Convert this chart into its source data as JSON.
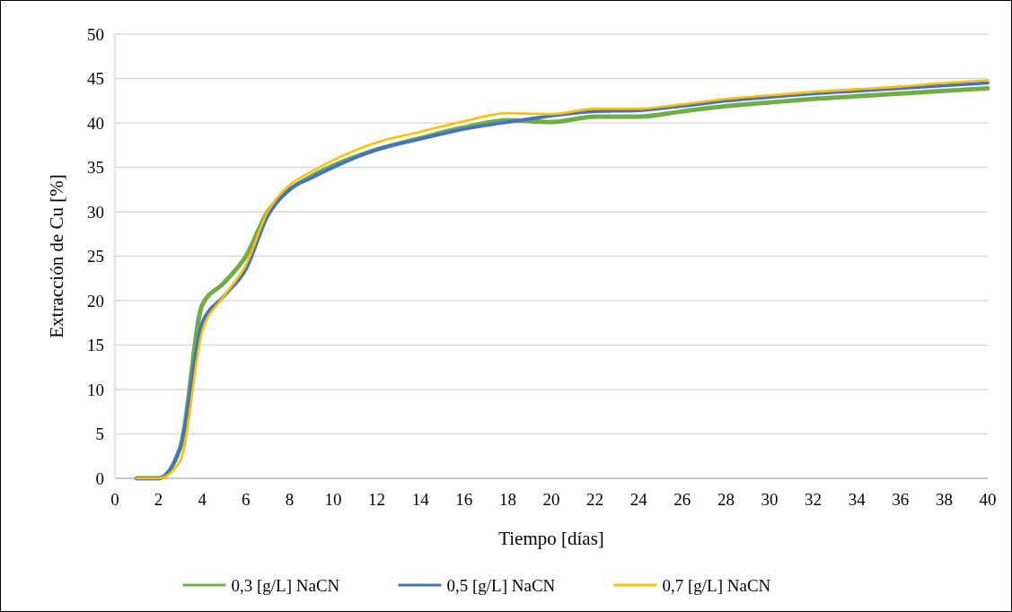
{
  "chart_data": {
    "type": "line",
    "xlabel": "Tiempo [días]",
    "ylabel": "Extracción de Cu [%]",
    "x": [
      1,
      2,
      3,
      4,
      5,
      6,
      7,
      8,
      9,
      10,
      12,
      14,
      16,
      18,
      20,
      22,
      24,
      26,
      28,
      30,
      32,
      34,
      36,
      38,
      40
    ],
    "series": [
      {
        "name": "0,3 [g/L] NaCN",
        "color": "#70ad47",
        "values": [
          0,
          0,
          3.5,
          19.5,
          22,
          25,
          30,
          32.5,
          34,
          35.2,
          37,
          38.3,
          39.5,
          40.3,
          40.1,
          40.7,
          40.7,
          41.3,
          41.9,
          42.3,
          42.7,
          43,
          43.3,
          43.6,
          43.9
        ]
      },
      {
        "name": "0,5 [g/L] NaCN",
        "color": "#4472c4",
        "values": [
          0,
          0,
          3.5,
          17.5,
          20.5,
          23.5,
          29.5,
          32.5,
          33.8,
          35,
          37,
          38.2,
          39.3,
          40.1,
          40.8,
          41.3,
          41.4,
          41.9,
          42.5,
          42.9,
          43.3,
          43.6,
          43.9,
          44.2,
          44.5
        ]
      },
      {
        "name": "0,7 [g/L] NaCN",
        "color": "#ffc000",
        "values": [
          0,
          0,
          2,
          16.5,
          20.5,
          24,
          30,
          33,
          34.5,
          35.8,
          37.8,
          39,
          40.2,
          41.1,
          41,
          41.6,
          41.6,
          42.1,
          42.7,
          43.1,
          43.5,
          43.8,
          44.1,
          44.5,
          44.8
        ]
      }
    ],
    "xlim": [
      0,
      40
    ],
    "xticks": [
      0,
      2,
      4,
      6,
      8,
      10,
      12,
      14,
      16,
      18,
      20,
      22,
      24,
      26,
      28,
      30,
      32,
      34,
      36,
      38,
      40
    ],
    "ylim": [
      0,
      50
    ],
    "yticks": [
      0,
      5,
      10,
      15,
      20,
      25,
      30,
      35,
      40,
      45,
      50
    ],
    "grid": "y",
    "legend": "bottom",
    "marker": "none",
    "line_style": "solid"
  }
}
